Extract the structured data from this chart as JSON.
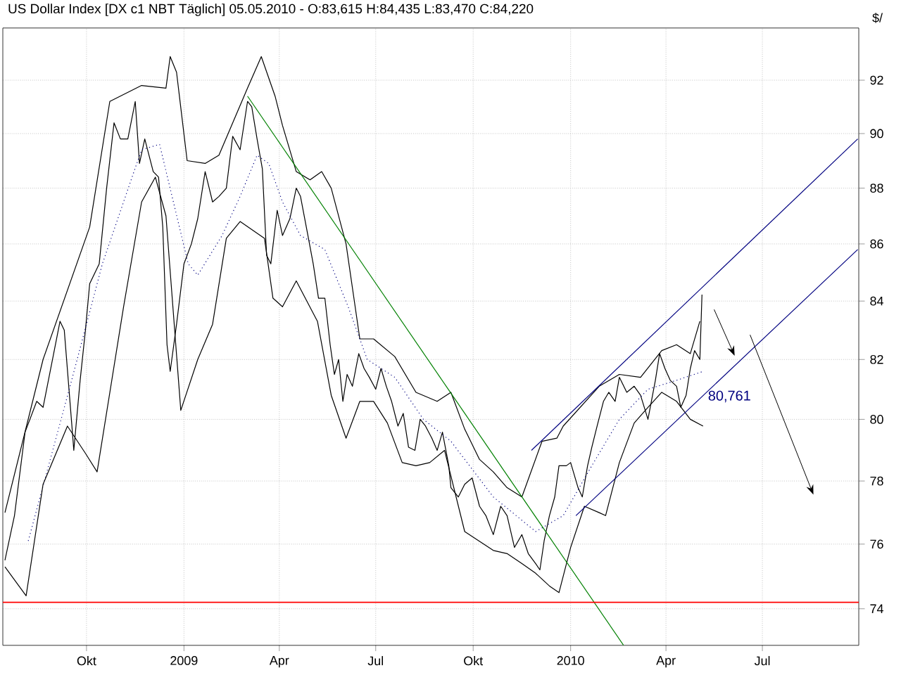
{
  "chart_data": {
    "type": "line",
    "title": "US Dollar Index [DX c1 NBT  Täglich] 05.05.2010 - O:83,615 H:84,435 L:83,470 C:84,220",
    "ylabel": "$/",
    "log": "y",
    "grid": true,
    "marker": "none",
    "xlim": [
      "2008-07-14",
      "2010-09-30"
    ],
    "ylim": [
      72.9,
      94
    ],
    "xticks": [
      {
        "value": "2008-10-01",
        "label": "Okt"
      },
      {
        "value": "2009-01-01",
        "label": "2009"
      },
      {
        "value": "2009-04-01",
        "label": "Apr"
      },
      {
        "value": "2009-07-01",
        "label": "Jul"
      },
      {
        "value": "2009-10-01",
        "label": "Okt"
      },
      {
        "value": "2010-01-01",
        "label": "2010"
      },
      {
        "value": "2010-04-01",
        "label": "Apr"
      },
      {
        "value": "2010-07-01",
        "label": "Jul"
      }
    ],
    "yticks": [
      74,
      76,
      78,
      80,
      82,
      84,
      86,
      88,
      90,
      92
    ],
    "ref_lines": [
      {
        "axis": "y",
        "value": 74.2,
        "color": "#ff0000"
      }
    ],
    "annotations": [
      {
        "text": "80,761",
        "x": "2010-05-06",
        "y": 80.761
      }
    ],
    "series": [
      {
        "color": "#000000",
        "x": [
          "2008-07-16",
          "2008-07-25",
          "2008-08-04",
          "2008-08-15",
          "2008-08-21",
          "2008-08-31",
          "2008-09-06",
          "2008-09-10",
          "2008-09-17",
          "2008-09-19",
          "2008-09-25",
          "2008-09-30",
          "2008-10-04",
          "2008-10-13",
          "2008-10-20",
          "2008-10-27",
          "2008-11-02",
          "2008-11-09",
          "2008-11-16",
          "2008-11-20",
          "2008-11-25",
          "2008-12-03",
          "2008-12-08",
          "2008-12-12",
          "2008-12-16",
          "2008-12-19",
          "2008-12-25",
          "2009-01-01",
          "2009-01-08",
          "2009-01-14",
          "2009-01-21",
          "2009-01-28",
          "2009-02-03",
          "2009-02-10",
          "2009-02-16",
          "2009-02-23",
          "2009-03-02",
          "2009-03-06",
          "2009-03-11",
          "2009-03-16",
          "2009-03-20",
          "2009-03-24",
          "2009-03-30",
          "2009-04-04",
          "2009-04-11",
          "2009-04-17",
          "2009-04-21",
          "2009-04-28",
          "2009-05-03",
          "2009-05-08",
          "2009-05-14",
          "2009-05-19",
          "2009-05-23",
          "2009-05-27",
          "2009-05-31",
          "2009-06-04",
          "2009-06-09",
          "2009-06-15",
          "2009-06-20",
          "2009-06-25",
          "2009-07-01",
          "2009-07-06",
          "2009-07-11",
          "2009-07-16",
          "2009-07-22",
          "2009-07-27",
          "2009-08-01",
          "2009-08-07",
          "2009-08-12",
          "2009-08-17",
          "2009-08-23",
          "2009-08-28",
          "2009-09-02",
          "2009-09-08",
          "2009-09-10",
          "2009-09-17",
          "2009-09-23",
          "2009-09-30",
          "2009-10-07",
          "2009-10-13",
          "2009-10-20",
          "2009-10-27",
          "2009-11-02",
          "2009-11-09",
          "2009-11-16",
          "2009-11-22",
          "2009-11-29",
          "2009-12-03",
          "2009-12-07",
          "2009-12-12",
          "2009-12-17",
          "2009-12-21",
          "2009-12-28",
          "2010-01-01",
          "2010-01-08",
          "2010-01-12",
          "2010-01-17",
          "2010-01-21",
          "2010-01-26",
          "2010-02-01",
          "2010-02-06",
          "2010-02-12",
          "2010-02-16",
          "2010-02-23",
          "2010-03-02",
          "2010-03-08",
          "2010-03-15",
          "2010-03-22",
          "2010-03-26",
          "2010-03-31",
          "2010-04-05",
          "2010-04-11",
          "2010-04-15",
          "2010-04-20",
          "2010-04-24",
          "2010-04-28",
          "2010-05-03",
          "2010-05-05"
        ],
        "values": [
          75.5,
          76.9,
          79.6,
          80.6,
          80.4,
          82.2,
          83.3,
          83.0,
          79.9,
          79.0,
          81.3,
          83.0,
          84.6,
          85.3,
          88.0,
          90.4,
          89.8,
          89.8,
          91.2,
          88.9,
          89.8,
          88.6,
          88.4,
          86.6,
          82.5,
          81.6,
          83.2,
          85.3,
          86.0,
          86.9,
          88.6,
          87.5,
          87.7,
          88.0,
          89.9,
          89.4,
          91.2,
          91.0,
          89.8,
          88.7,
          85.6,
          85.3,
          87.2,
          86.3,
          86.9,
          88.0,
          87.7,
          86.3,
          85.3,
          84.1,
          84.1,
          82.5,
          81.5,
          82.0,
          80.6,
          81.5,
          81.1,
          82.2,
          81.7,
          81.4,
          81.0,
          81.7,
          81.1,
          80.6,
          79.8,
          80.2,
          79.1,
          79.0,
          80.0,
          79.8,
          79.4,
          79.0,
          79.6,
          78.5,
          77.8,
          77.5,
          77.9,
          78.1,
          77.2,
          76.9,
          76.3,
          77.2,
          76.9,
          75.9,
          76.3,
          75.7,
          75.4,
          75.2,
          76.1,
          76.9,
          77.5,
          78.5,
          78.5,
          78.6,
          77.8,
          77.5,
          78.5,
          79.1,
          79.8,
          80.6,
          80.9,
          80.6,
          81.4,
          80.9,
          81.1,
          80.8,
          80.0,
          81.3,
          82.2,
          81.7,
          81.3,
          81.1,
          80.4,
          80.8,
          81.7,
          82.3,
          82.0,
          84.22
        ]
      },
      {
        "color": "#000000",
        "x": [
          "2008-07-16",
          "2008-08-21",
          "2008-10-04",
          "2008-10-23",
          "2008-11-22",
          "2008-12-15",
          "2008-12-19",
          "2008-12-25",
          "2009-01-04",
          "2009-01-21",
          "2009-02-03",
          "2009-02-16",
          "2009-03-02",
          "2009-03-15",
          "2009-03-28",
          "2009-04-04",
          "2009-04-17",
          "2009-04-30",
          "2009-05-11",
          "2009-05-20",
          "2009-06-03",
          "2009-06-16",
          "2009-06-29",
          "2009-07-19",
          "2009-08-08",
          "2009-08-28",
          "2009-09-10",
          "2009-09-23",
          "2009-10-07",
          "2009-10-20",
          "2009-11-02",
          "2009-11-16",
          "2009-12-05",
          "2009-12-19",
          "2009-12-25",
          "2010-01-28",
          "2010-02-16",
          "2010-03-08",
          "2010-03-28",
          "2010-04-11",
          "2010-04-24",
          "2010-05-03"
        ],
        "values": [
          77.0,
          82.0,
          86.6,
          91.2,
          91.8,
          91.7,
          92.9,
          92.3,
          89.0,
          88.9,
          89.2,
          90.4,
          91.7,
          92.9,
          91.4,
          90.3,
          88.6,
          88.3,
          88.6,
          88.0,
          86.0,
          82.7,
          82.7,
          82.1,
          80.9,
          80.6,
          80.9,
          79.7,
          78.7,
          78.3,
          77.8,
          77.5,
          79.3,
          79.4,
          79.8,
          81.1,
          81.5,
          81.4,
          82.3,
          82.5,
          82.2,
          83.3
        ]
      },
      {
        "color": "#000080",
        "line_style": "dotted",
        "x": [
          "2008-08-07",
          "2008-09-17",
          "2008-10-16",
          "2008-11-13",
          "2008-11-22",
          "2008-12-09",
          "2009-01-05",
          "2009-01-14",
          "2009-02-06",
          "2009-02-23",
          "2009-03-11",
          "2009-03-22",
          "2009-04-04",
          "2009-04-21",
          "2009-05-14",
          "2009-06-05",
          "2009-06-23",
          "2009-07-19",
          "2009-08-15",
          "2009-09-10",
          "2009-10-20",
          "2009-11-29",
          "2009-12-25",
          "2010-01-21",
          "2010-02-16",
          "2010-03-15",
          "2010-04-11",
          "2010-05-06"
        ],
        "values": [
          76.1,
          81.3,
          85.3,
          88.4,
          89.4,
          89.6,
          85.3,
          84.9,
          86.3,
          87.7,
          89.2,
          88.9,
          87.5,
          86.3,
          85.8,
          83.8,
          82.0,
          81.4,
          80.0,
          79.3,
          77.5,
          76.4,
          76.9,
          78.5,
          80.0,
          81.0,
          81.3,
          81.6
        ]
      },
      {
        "color": "#000000",
        "x": [
          "2008-07-16",
          "2008-08-05",
          "2008-08-21",
          "2008-09-13",
          "2008-09-30",
          "2008-10-11",
          "2008-11-05",
          "2008-11-22",
          "2008-12-05",
          "2008-12-15",
          "2008-12-29",
          "2009-01-14",
          "2009-01-28",
          "2009-02-10",
          "2009-02-23",
          "2009-03-18",
          "2009-03-26",
          "2009-04-04",
          "2009-04-17",
          "2009-05-07",
          "2009-05-20",
          "2009-06-03",
          "2009-06-16",
          "2009-06-29",
          "2009-07-12",
          "2009-07-26",
          "2009-08-08",
          "2009-08-21",
          "2009-09-04",
          "2009-09-23",
          "2009-10-20",
          "2009-11-02",
          "2009-11-16",
          "2009-11-29",
          "2009-12-12",
          "2009-12-21",
          "2010-01-01",
          "2010-01-14",
          "2010-01-28",
          "2010-02-03",
          "2010-02-16",
          "2010-03-02",
          "2010-03-15",
          "2010-03-28",
          "2010-04-11",
          "2010-04-24",
          "2010-05-06"
        ],
        "values": [
          75.3,
          74.4,
          77.9,
          79.8,
          78.9,
          78.3,
          83.8,
          87.5,
          88.4,
          87.0,
          80.3,
          82.0,
          83.2,
          86.2,
          86.8,
          86.2,
          84.1,
          83.8,
          84.7,
          83.3,
          80.8,
          79.4,
          80.6,
          80.6,
          79.9,
          78.6,
          78.5,
          78.6,
          79.0,
          76.4,
          75.8,
          75.7,
          75.4,
          75.1,
          74.7,
          74.5,
          75.9,
          77.2,
          77.0,
          76.9,
          78.6,
          79.9,
          80.4,
          80.9,
          80.6,
          80.0,
          79.8
        ]
      },
      {
        "color": "#008000",
        "x": [
          "2009-03-02",
          "2010-02-20"
        ],
        "values": [
          91.4,
          72.9
        ]
      },
      {
        "color": "#000080",
        "x": [
          "2009-11-25",
          "2010-09-29"
        ],
        "values": [
          79.0,
          89.8
        ]
      },
      {
        "color": "#000080",
        "x": [
          "2010-01-06",
          "2010-09-29"
        ],
        "values": [
          76.9,
          85.8
        ]
      }
    ]
  }
}
